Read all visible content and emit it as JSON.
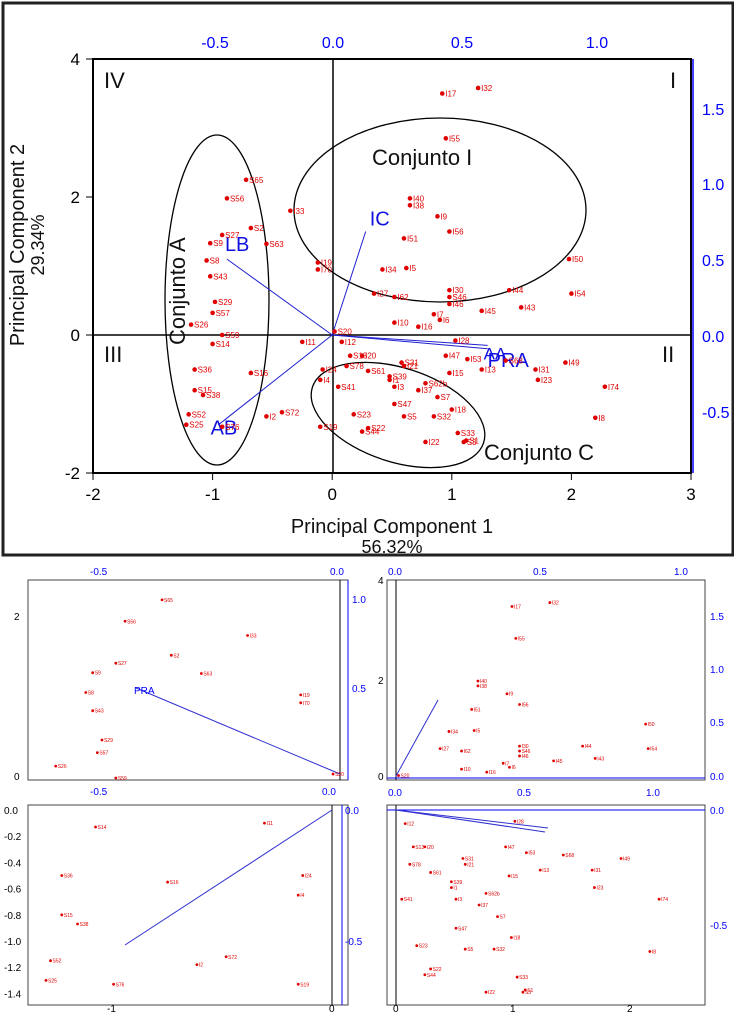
{
  "chart_data": [
    {
      "type": "scatter",
      "panel": "main",
      "xlabel": "Principal Component 1",
      "xlabel_sub": "56.32%",
      "ylabel": "Principal Component 2",
      "ylabel_sub": "29.34%",
      "xlim": [
        -2,
        3
      ],
      "ylim": [
        -2,
        4
      ],
      "xticks": [
        "-2",
        "-1",
        "0",
        "1",
        "2",
        "3"
      ],
      "yticks": [
        "-2",
        "0",
        "2",
        "4"
      ],
      "top_ticks": [
        "-0.5",
        "0.0",
        "0.5",
        "1.0"
      ],
      "right_ticks": [
        "-0.5",
        "0.0",
        "0.5",
        "1.0",
        "1.5"
      ],
      "quadrants": [
        "I",
        "II",
        "III",
        "IV"
      ],
      "groups": [
        "Conjunto A",
        "Conjunto I",
        "Conjunto C"
      ],
      "loadings": [
        {
          "name": "LB",
          "x": -0.88,
          "y": 1.1
        },
        {
          "name": "IC",
          "x": 0.28,
          "y": 1.5
        },
        {
          "name": "AB",
          "x": -0.95,
          "y": -1.3
        },
        {
          "name": "PRA",
          "x": 1.3,
          "y": -0.2
        },
        {
          "name": "AA",
          "x": 1.3,
          "y": -0.15
        }
      ],
      "points": [
        [
          "I17",
          0.92,
          3.5
        ],
        [
          "I32",
          1.22,
          3.58
        ],
        [
          "I55",
          0.95,
          2.85
        ],
        [
          "I40",
          0.65,
          1.98
        ],
        [
          "I38",
          0.65,
          1.88
        ],
        [
          "I9",
          0.88,
          1.72
        ],
        [
          "I56",
          0.98,
          1.5
        ],
        [
          "I51",
          0.6,
          1.4
        ],
        [
          "I34",
          0.42,
          0.95
        ],
        [
          "I5",
          0.62,
          0.97
        ],
        [
          "I30",
          0.98,
          0.65
        ],
        [
          "I44",
          1.48,
          0.65
        ],
        [
          "I50",
          1.98,
          1.1
        ],
        [
          "I54",
          2.0,
          0.6
        ],
        [
          "I43",
          1.58,
          0.4
        ],
        [
          "I27",
          0.35,
          0.6
        ],
        [
          "I62",
          0.52,
          0.55
        ],
        [
          "I46",
          0.98,
          0.45
        ],
        [
          "I45",
          1.25,
          0.35
        ],
        [
          "I7",
          0.85,
          0.3
        ],
        [
          "I10",
          0.52,
          0.18
        ],
        [
          "I6",
          0.9,
          0.22
        ],
        [
          "I16",
          0.72,
          0.12
        ],
        [
          "I28",
          1.03,
          -0.08
        ],
        [
          "I49",
          1.95,
          -0.4
        ],
        [
          "I31",
          1.7,
          -0.5
        ],
        [
          "I23",
          1.72,
          -0.65
        ],
        [
          "I74",
          2.28,
          -0.75
        ],
        [
          "I8",
          2.2,
          -1.2
        ],
        [
          "I13",
          1.25,
          -0.5
        ],
        [
          "I53",
          1.13,
          -0.35
        ],
        [
          "I47",
          0.95,
          -0.3
        ],
        [
          "I15",
          0.98,
          -0.55
        ],
        [
          "I18",
          1.0,
          -1.08
        ],
        [
          "I22",
          0.78,
          -1.55
        ],
        [
          "I20",
          0.25,
          -0.3
        ],
        [
          "I12",
          0.08,
          -0.1
        ],
        [
          "I11",
          -0.25,
          -0.1
        ],
        [
          "I24",
          -0.08,
          -0.5
        ],
        [
          "I4",
          -0.1,
          -0.65
        ],
        [
          "I1",
          0.48,
          -0.65
        ],
        [
          "I3",
          0.52,
          -0.75
        ],
        [
          "I37",
          0.72,
          -0.8
        ],
        [
          "I21",
          0.6,
          -0.45
        ],
        [
          "I2",
          -0.55,
          -1.18
        ],
        [
          "I33",
          -0.35,
          1.8
        ],
        [
          "I19",
          -0.12,
          1.05
        ],
        [
          "I70",
          -0.12,
          0.95
        ],
        [
          "S65",
          -0.72,
          2.25
        ],
        [
          "S56",
          -0.88,
          1.98
        ],
        [
          "S2",
          -0.68,
          1.55
        ],
        [
          "S27",
          -0.92,
          1.45
        ],
        [
          "S9",
          -1.02,
          1.33
        ],
        [
          "S63",
          -0.55,
          1.32
        ],
        [
          "S8",
          -1.05,
          1.08
        ],
        [
          "S43",
          -1.02,
          0.85
        ],
        [
          "S29",
          -0.98,
          0.48
        ],
        [
          "S57",
          -1.0,
          0.32
        ],
        [
          "S59",
          -0.92,
          0.0
        ],
        [
          "S14",
          -1.0,
          -0.13
        ],
        [
          "S16",
          -0.68,
          -0.55
        ],
        [
          "S38",
          -1.08,
          -0.87
        ],
        [
          "S52",
          -1.2,
          -1.15
        ],
        [
          "S25",
          -1.22,
          -1.3
        ],
        [
          "S76",
          -0.92,
          -1.33
        ],
        [
          "S72",
          -0.42,
          -1.12
        ],
        [
          "S19",
          -0.1,
          -1.33
        ],
        [
          "S20",
          0.02,
          0.05
        ],
        [
          "S13",
          0.15,
          -0.3
        ],
        [
          "S78",
          0.12,
          -0.45
        ],
        [
          "S61",
          0.3,
          -0.52
        ],
        [
          "S41",
          0.05,
          -0.75
        ],
        [
          "S39",
          0.48,
          -0.6
        ],
        [
          "S31",
          0.58,
          -0.4
        ],
        [
          "S47",
          0.52,
          -1.0
        ],
        [
          "S23",
          0.18,
          -1.15
        ],
        [
          "S22",
          0.3,
          -1.35
        ],
        [
          "S44",
          0.25,
          -1.4
        ],
        [
          "S5",
          0.6,
          -1.18
        ],
        [
          "S32",
          0.85,
          -1.18
        ],
        [
          "S68",
          1.45,
          -0.37
        ],
        [
          "S46",
          0.98,
          0.55
        ],
        [
          "S62b",
          0.78,
          -0.7
        ],
        [
          "S7",
          0.88,
          -0.9
        ],
        [
          "S33",
          1.05,
          -1.42
        ],
        [
          "S3",
          1.1,
          -1.55
        ],
        [
          "S1",
          1.12,
          -1.53
        ],
        [
          "S15",
          -1.15,
          -0.8
        ],
        [
          "S26",
          -1.18,
          0.15
        ],
        [
          "S36",
          -1.15,
          -0.5
        ]
      ]
    },
    {
      "type": "scatter",
      "panel": "zoom-top-left",
      "yticks": [
        "0",
        "2"
      ],
      "top_ticks": [
        "-0.5",
        "0.0"
      ],
      "right_ticks": [
        "0.5",
        "1.0"
      ],
      "loading": "LB"
    },
    {
      "type": "scatter",
      "panel": "zoom-top-right",
      "yticks": [
        "0",
        "2",
        "4"
      ],
      "top_ticks": [
        "0.0",
        "0.5",
        "1.0"
      ],
      "right_ticks": [
        "0.0",
        "0.5",
        "1.0",
        "1.5"
      ],
      "xticks": [
        "0.0",
        "0.5",
        "1.0"
      ],
      "loading": "IC"
    },
    {
      "type": "scatter",
      "panel": "zoom-bottom-left",
      "yticks": [
        "0.0",
        "-0.2",
        "-0.4",
        "-0.6",
        "-0.8",
        "-1.0",
        "-1.2",
        "-1.4"
      ],
      "xticks": [
        "-1",
        "0"
      ],
      "top_ticks": [
        "-0.5",
        "0.0"
      ],
      "right_ticks": [
        "0.0",
        "-0.5"
      ],
      "loading": "AB"
    },
    {
      "type": "scatter",
      "panel": "zoom-bottom-right",
      "xticks": [
        "0",
        "1",
        "2"
      ],
      "right_ticks": [
        "0.0",
        "-0.5"
      ],
      "loading": "PRA"
    }
  ]
}
